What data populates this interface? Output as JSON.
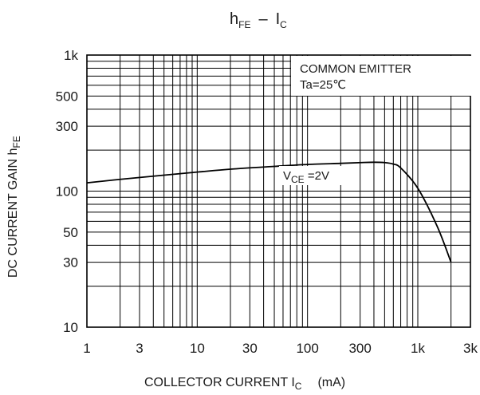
{
  "chart_data": {
    "type": "line",
    "title": {
      "main": "h",
      "main_sub": "FE",
      "sep": "–",
      "second": "I",
      "second_sub": "C"
    },
    "xlabel": {
      "text": "COLLECTOR CURRENT I",
      "sub": "C",
      "unit": "(mA)"
    },
    "ylabel": {
      "text": "DC CURRENT GAIN h",
      "sub": "FE"
    },
    "x_scale": "log",
    "y_scale": "log",
    "xlim": [
      1,
      3000
    ],
    "ylim": [
      10,
      1000
    ],
    "x_ticks": [
      {
        "value": 1,
        "label": "1"
      },
      {
        "value": 3,
        "label": "3"
      },
      {
        "value": 10,
        "label": "10"
      },
      {
        "value": 30,
        "label": "30"
      },
      {
        "value": 100,
        "label": "100"
      },
      {
        "value": 300,
        "label": "300"
      },
      {
        "value": 1000,
        "label": "1k"
      },
      {
        "value": 3000,
        "label": "3k"
      }
    ],
    "y_ticks": [
      {
        "value": 10,
        "label": "10"
      },
      {
        "value": 30,
        "label": "30"
      },
      {
        "value": 50,
        "label": "50"
      },
      {
        "value": 100,
        "label": "100"
      },
      {
        "value": 300,
        "label": "300"
      },
      {
        "value": 500,
        "label": "500"
      },
      {
        "value": 1000,
        "label": "1k"
      }
    ],
    "grid": true,
    "annotations": [
      {
        "text": "COMMON EMITTER"
      },
      {
        "text": "Ta=25℃"
      }
    ],
    "series": [
      {
        "label": {
          "main": "V",
          "sub": "CE",
          "rest": " =2V"
        },
        "x": [
          1,
          2,
          5,
          10,
          20,
          50,
          100,
          200,
          300,
          400,
          500,
          600,
          700,
          1000,
          1500,
          2000
        ],
        "y": [
          115,
          122,
          131,
          138,
          145,
          152,
          157,
          160,
          162,
          163,
          162,
          158,
          148,
          105,
          55,
          30
        ]
      }
    ],
    "line_color": "#000000",
    "grid_color": "#000000"
  }
}
